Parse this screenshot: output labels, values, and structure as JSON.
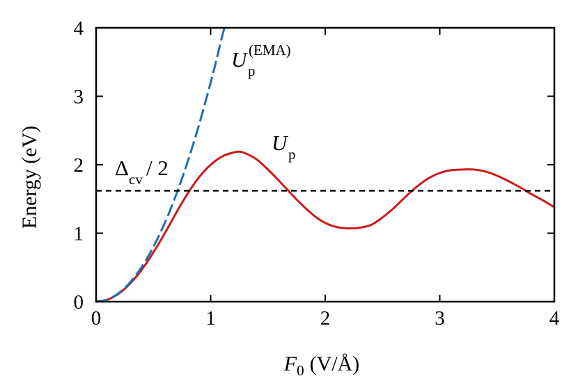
{
  "chart_data": {
    "type": "line",
    "title": "",
    "xlabel": {
      "symbol": "F",
      "subscript": "0",
      "unit": "(V/Å)"
    },
    "ylabel": "Energy (eV)",
    "xlim": [
      0,
      4
    ],
    "ylim": [
      0,
      4
    ],
    "xticks": [
      "0",
      "1",
      "2",
      "3",
      "4"
    ],
    "yticks": [
      "0",
      "1",
      "2",
      "3",
      "4"
    ],
    "grid": false,
    "legend": "none",
    "series": [
      {
        "key": "up",
        "style": "solid",
        "color": "#cc1a1a",
        "x": [
          0,
          0.1,
          0.2,
          0.3,
          0.4,
          0.5,
          0.6,
          0.7,
          0.8,
          0.9,
          1.0,
          1.1,
          1.2,
          1.25,
          1.3,
          1.4,
          1.5,
          1.6,
          1.7,
          1.8,
          1.9,
          2.0,
          2.1,
          2.2,
          2.3,
          2.4,
          2.5,
          2.6,
          2.7,
          2.8,
          2.9,
          3.0,
          3.1,
          3.2,
          3.3,
          3.4,
          3.5,
          3.6,
          3.7,
          3.8,
          3.9,
          4.0
        ],
        "y": [
          0,
          0.03,
          0.12,
          0.27,
          0.47,
          0.72,
          1.0,
          1.3,
          1.58,
          1.82,
          2.0,
          2.12,
          2.18,
          2.19,
          2.17,
          2.08,
          1.93,
          1.76,
          1.58,
          1.41,
          1.26,
          1.15,
          1.09,
          1.07,
          1.08,
          1.12,
          1.23,
          1.37,
          1.53,
          1.68,
          1.8,
          1.88,
          1.92,
          1.93,
          1.93,
          1.9,
          1.84,
          1.76,
          1.67,
          1.57,
          1.48,
          1.38
        ]
      },
      {
        "key": "ema",
        "style": "dashed",
        "color": "#1f6fb2",
        "x": [
          0,
          0.1,
          0.2,
          0.3,
          0.4,
          0.5,
          0.6,
          0.7,
          0.8,
          0.9,
          1.0,
          1.05,
          1.1,
          1.12
        ],
        "y": [
          0,
          0.032,
          0.128,
          0.288,
          0.512,
          0.8,
          1.152,
          1.568,
          2.048,
          2.592,
          3.2,
          3.528,
          3.872,
          4.0
        ]
      },
      {
        "key": "dcv",
        "style": "dashed",
        "color": "#000000",
        "x": [
          0,
          4
        ],
        "y": [
          1.62,
          1.62
        ]
      }
    ],
    "annotations": [
      {
        "key": "ema",
        "main": "U",
        "sub": "p",
        "sup": "(EMA)"
      },
      {
        "key": "up",
        "main": "U",
        "sub": "p"
      },
      {
        "key": "dcv",
        "main": "Δ",
        "sub": "cv",
        "tail": "/ 2"
      }
    ]
  }
}
